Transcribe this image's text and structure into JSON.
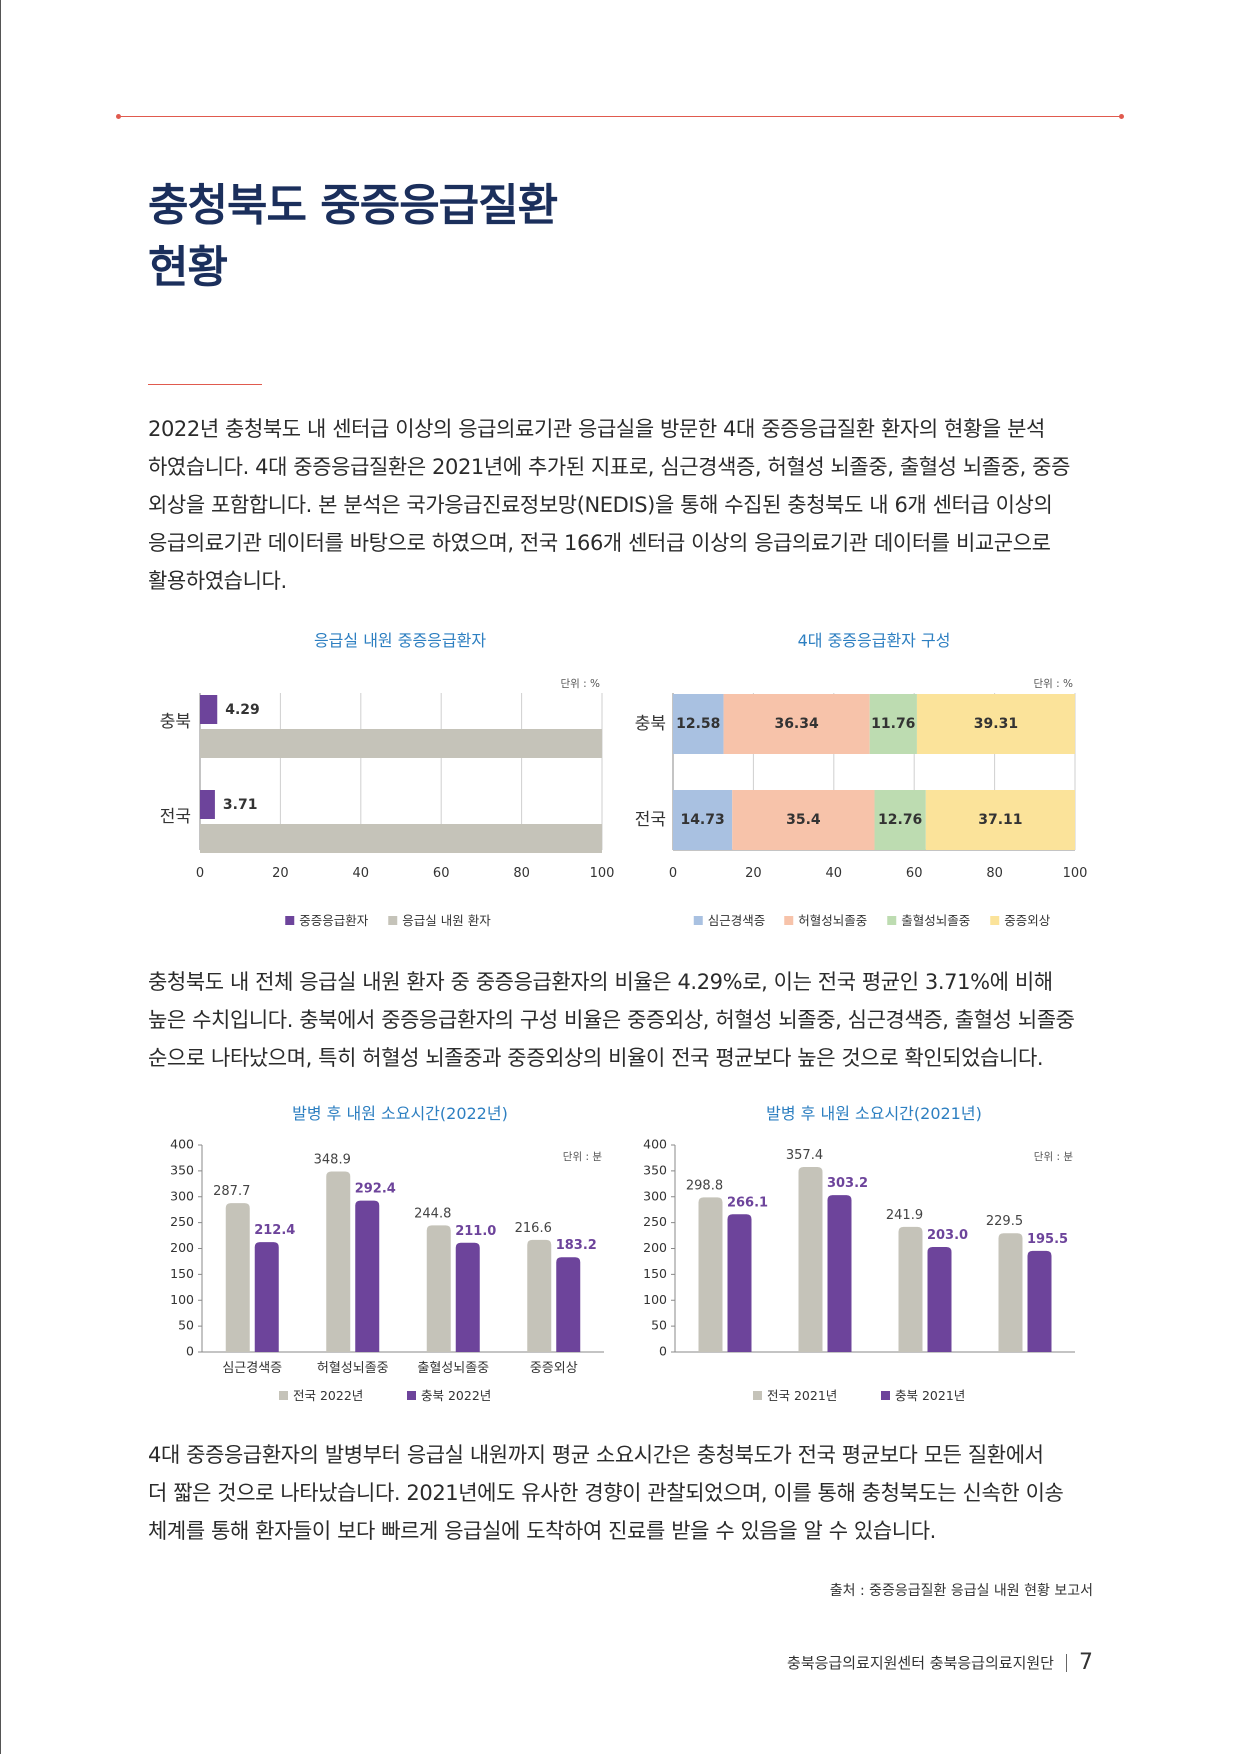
{
  "title": {
    "line1": "충청북도 중증응급질환",
    "line2": "현황"
  },
  "paragraphs": {
    "p1": [
      "2022년 충청북도 내 센터급 이상의 응급의료기관 응급실을 방문한 4대 중증응급질환 환자의 현황을 분석",
      "하였습니다. 4대 중증응급질환은 2021년에 추가된 지표로, 심근경색증, 허혈성 뇌졸중, 출혈성 뇌졸중, 중증",
      "외상을 포함합니다. 본 분석은 국가응급진료정보망(NEDIS)을 통해 수집된 충청북도 내 6개 센터급 이상의",
      "응급의료기관 데이터를 바탕으로 하였으며,  전국 166개 센터급 이상의 응급의료기관 데이터를 비교군으로",
      "활용하였습니다."
    ],
    "p2": [
      "충청북도 내 전체 응급실 내원 환자 중 중증응급환자의 비율은 4.29%로, 이는 전국 평균인 3.71%에 비해",
      "높은 수치입니다. 충북에서 중증응급환자의 구성 비율은 중증외상, 허혈성 뇌졸중, 심근경색증, 출혈성 뇌졸중",
      "순으로 나타났으며, 특히 허혈성 뇌졸중과 중증외상의 비율이 전국 평균보다 높은 것으로 확인되었습니다."
    ],
    "p3": [
      "4대 중증응급환자의 발병부터 응급실 내원까지 평균 소요시간은 충청북도가 전국 평균보다 모든 질환에서",
      "더 짧은 것으로 나타났습니다. 2021년에도 유사한 경향이 관찰되었으며, 이를 통해 충청북도는 신속한 이송",
      "체계를 통해 환자들이 보다 빠르게 응급실에 도착하여 진료를 받을 수 있음을 알 수 있습니다."
    ]
  },
  "source": "출처 : 중증응급질환 응급실 내원 현황 보고서",
  "footer": {
    "org": "충북응급의료지원센터 충북응급의료지원단",
    "page": "7"
  },
  "colors": {
    "title": "#1b2f5c",
    "chart_title": "#2d7fc1",
    "accent": "#e05a4e",
    "purple": "#6d449b",
    "gray_bar": "#c5c3b9",
    "mi": "#a9c1e1",
    "isch": "#f7c3aa",
    "hem": "#bddcb1",
    "trauma": "#fbe39a"
  },
  "chart_data": [
    {
      "type": "bar",
      "orientation": "horizontal",
      "title": "응급실 내원 중증응급환자",
      "unit": "단위 : %",
      "categories": [
        "충북",
        "전국"
      ],
      "series": [
        {
          "name": "중증응급환자",
          "values": [
            4.29,
            3.71
          ],
          "color": "#6d449b"
        },
        {
          "name": "응급실 내원 환자",
          "values": [
            100,
            100
          ],
          "color": "#c5c3b9"
        }
      ],
      "xlim": [
        0,
        100
      ],
      "xticks": [
        0,
        20,
        40,
        60,
        80,
        100
      ],
      "legend": "bottom"
    },
    {
      "type": "bar",
      "orientation": "horizontal",
      "stacked": true,
      "title": "4대 중증응급환자 구성",
      "unit": "단위 : %",
      "categories": [
        "충북",
        "전국"
      ],
      "series": [
        {
          "name": "심근경색증",
          "values": [
            12.58,
            14.73
          ],
          "color": "#a9c1e1"
        },
        {
          "name": "허혈성뇌졸중",
          "values": [
            36.34,
            35.4
          ],
          "color": "#f7c3aa"
        },
        {
          "name": "출혈성뇌졸중",
          "values": [
            11.76,
            12.76
          ],
          "color": "#bddcb1"
        },
        {
          "name": "중증외상",
          "values": [
            39.31,
            37.11
          ],
          "color": "#fbe39a"
        }
      ],
      "xlim": [
        0,
        100
      ],
      "xticks": [
        0,
        20,
        40,
        60,
        80,
        100
      ],
      "legend": "bottom"
    },
    {
      "type": "bar",
      "title": "발병 후 내원 소요시간(2022년)",
      "unit": "단위 : 분",
      "categories": [
        "심근경색증",
        "허혈성뇌졸중",
        "출혈성뇌졸중",
        "중증외상"
      ],
      "series": [
        {
          "name": "전국 2022년",
          "values": [
            287.7,
            348.9,
            244.8,
            216.6
          ],
          "color": "#c5c3b9",
          "labels": [
            "287.7",
            "348.9",
            "244.8",
            "216.6"
          ]
        },
        {
          "name": "충북 2022년",
          "values": [
            212.4,
            292.4,
            211.0,
            183.2
          ],
          "color": "#6d449b",
          "labels": [
            "212.4",
            "292.4",
            "211.0",
            "183.2"
          ]
        }
      ],
      "ylim": [
        0,
        400
      ],
      "yticks": [
        0,
        50,
        100,
        150,
        200,
        250,
        300,
        350,
        400
      ],
      "legend": "bottom"
    },
    {
      "type": "bar",
      "title": "발병 후 내원 소요시간(2021년)",
      "unit": "단위 : 분",
      "categories": [
        "",
        "",
        "",
        ""
      ],
      "series": [
        {
          "name": "전국 2021년",
          "values": [
            298.8,
            357.4,
            241.9,
            229.5
          ],
          "color": "#c5c3b9",
          "labels": [
            "298.8",
            "357.4",
            "241.9",
            "229.5"
          ]
        },
        {
          "name": "충북 2021년",
          "values": [
            266.1,
            303.2,
            203.0,
            195.5
          ],
          "color": "#6d449b",
          "labels": [
            "266.1",
            "303.2",
            "203.0",
            "195.5"
          ]
        }
      ],
      "ylim": [
        0,
        400
      ],
      "yticks": [
        0,
        50,
        100,
        150,
        200,
        250,
        300,
        350,
        400
      ],
      "legend": "bottom"
    }
  ]
}
